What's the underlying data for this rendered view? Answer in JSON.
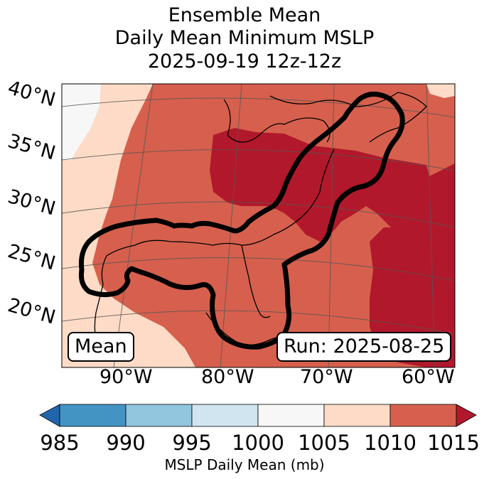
{
  "title": {
    "line1": "Ensemble Mean",
    "line2": "Daily Mean Minimum MSLP",
    "line3": "2025-09-19 12z-12z"
  },
  "map": {
    "lat_labels": [
      "40°N",
      "35°N",
      "30°N",
      "25°N",
      "20°N"
    ],
    "lon_labels": [
      "90°W",
      "80°W",
      "70°W",
      "60°W"
    ],
    "mean_box": "Mean",
    "run_box": "Run: 2025-08-25",
    "contour_color": "#000000"
  },
  "colorbar": {
    "ticks": [
      "985",
      "990",
      "995",
      "1000",
      "1005",
      "1010",
      "1015"
    ],
    "label": "MSLP Daily Mean (mb)",
    "colors": {
      "below": "#2166ac",
      "985-990": "#4393c3",
      "990-995": "#92c5de",
      "995-1000": "#d1e5f0",
      "1000-1005": "#f7f7f7",
      "1005-1010": "#fddbc7",
      "1010-1015": "#d6604d",
      "above": "#b2182b"
    }
  }
}
